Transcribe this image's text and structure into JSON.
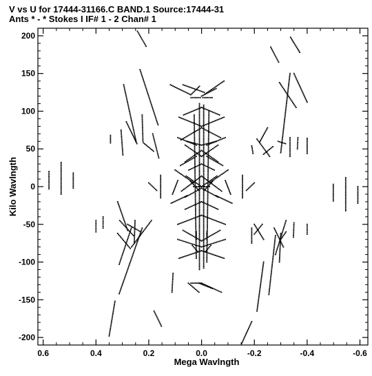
{
  "header": {
    "line1": "V vs U for 17444-31166.C BAND.1   Source:17444-31",
    "line2": "Ants * - *     Stokes I  IF# 1 - 2  Chan# 1"
  },
  "chart_data": {
    "type": "scatter",
    "title": "V vs U for 17444-31166.C BAND.1   Source:17444-31",
    "subtitle": "Ants * - *     Stokes I  IF# 1 - 2  Chan# 1",
    "xlabel": "Mega Wavlngth",
    "ylabel": "Kilo Wavlngth",
    "xlim": [
      0.62,
      -0.63
    ],
    "ylim": [
      -210,
      210
    ],
    "x_ticks": [
      0.6,
      0.4,
      0.2,
      0.0,
      -0.2,
      -0.4,
      -0.6
    ],
    "x_tick_labels": [
      "0.6",
      "0.4",
      "0.2",
      "0.0",
      "-0.2",
      "-0.4",
      "-0.6"
    ],
    "y_ticks": [
      200,
      150,
      100,
      50,
      0,
      -50,
      -100,
      -150,
      -200
    ],
    "y_tick_labels": [
      "200",
      "150",
      "100",
      "50",
      "0",
      "-50",
      "-100",
      "-150",
      "-200"
    ],
    "grid": false,
    "marker_color": "#000000",
    "tracks": [
      [
        0.578,
        0.578,
        20,
        -3
      ],
      [
        0.532,
        0.532,
        32,
        -10
      ],
      [
        0.486,
        0.486,
        18,
        -2
      ],
      [
        -0.499,
        -0.499,
        3,
        -19
      ],
      [
        -0.546,
        -0.546,
        12,
        -32
      ],
      [
        -0.592,
        -0.592,
        0,
        -22
      ],
      [
        0.243,
        0.21,
        206,
        186
      ],
      [
        0.233,
        0.165,
        155,
        82
      ],
      [
        0.295,
        0.248,
        135,
        60
      ],
      [
        0.225,
        0.222,
        95,
        60
      ],
      [
        0.345,
        0.345,
        68,
        58
      ],
      [
        0.305,
        0.298,
        75,
        42
      ],
      [
        0.285,
        0.245,
        86,
        57
      ],
      [
        0.185,
        0.162,
        70,
        38
      ],
      [
        0.22,
        0.182,
        58,
        47
      ],
      [
        -0.262,
        -0.292,
        185,
        165
      ],
      [
        -0.337,
        -0.372,
        198,
        178
      ],
      [
        -0.35,
        -0.4,
        150,
        112
      ],
      [
        -0.295,
        -0.358,
        138,
        105
      ],
      [
        -0.335,
        -0.3,
        150,
        45
      ],
      [
        -0.365,
        -0.363,
        65,
        50
      ],
      [
        -0.4,
        -0.4,
        64,
        44
      ],
      [
        -0.318,
        -0.29,
        57,
        60
      ],
      [
        -0.27,
        -0.235,
        53,
        43
      ],
      [
        -0.19,
        -0.195,
        54,
        44
      ],
      [
        -0.25,
        -0.22,
        78,
        59
      ],
      [
        -0.21,
        -0.258,
        63,
        40
      ],
      [
        -0.335,
        -0.335,
        65,
        40
      ],
      [
        0.18,
        0.152,
        -165,
        -185
      ],
      [
        0.328,
        0.35,
        -152,
        -198
      ],
      [
        0.225,
        0.312,
        -55,
        -142
      ],
      [
        0.266,
        0.312,
        -55,
        -103
      ],
      [
        0.318,
        0.28,
        -20,
        -58
      ],
      [
        0.373,
        0.373,
        -40,
        -55
      ],
      [
        0.4,
        0.4,
        -45,
        -60
      ],
      [
        0.318,
        0.27,
        -62,
        -82
      ],
      [
        0.265,
        0.19,
        -80,
        -45
      ],
      [
        0.28,
        0.23,
        -50,
        -60
      ],
      [
        0.252,
        0.255,
        -45,
        -75
      ],
      [
        0.31,
        0.258,
        -45,
        -65
      ],
      [
        -0.19,
        -0.152,
        -179,
        -208
      ],
      [
        -0.28,
        -0.255,
        -65,
        -143
      ],
      [
        -0.235,
        -0.21,
        -100,
        -165
      ],
      [
        -0.275,
        -0.31,
        -55,
        -80
      ],
      [
        -0.3,
        -0.32,
        -70,
        -60
      ],
      [
        -0.3,
        -0.295,
        -62,
        -100
      ],
      [
        -0.35,
        -0.348,
        -48,
        -67
      ],
      [
        -0.4,
        -0.4,
        -50,
        -63
      ],
      [
        -0.32,
        -0.28,
        -45,
        -90
      ],
      [
        -0.23,
        -0.2,
        -50,
        -63
      ],
      [
        -0.2,
        -0.235,
        -50,
        -70
      ],
      [
        -0.19,
        -0.19,
        -55,
        -75
      ],
      [
        0.008,
        0.04,
        133,
        122
      ],
      [
        0.042,
        0.118,
        122,
        135
      ],
      [
        0.07,
        -0.01,
        135,
        125
      ],
      [
        -0.01,
        -0.085,
        122,
        140
      ],
      [
        0.0,
        -0.055,
        120,
        130
      ],
      [
        0.05,
        0.01,
        -128,
        -140
      ],
      [
        0.04,
        0.0,
        -128,
        -128
      ],
      [
        0.0,
        -0.075,
        -128,
        -140
      ],
      [
        0.01,
        -0.04,
        -128,
        -135
      ],
      [
        0.112,
        0.108,
        -140,
        -115
      ],
      [
        0.008,
        0.008,
        110,
        -110
      ],
      [
        -0.008,
        -0.008,
        108,
        -108
      ],
      [
        0.028,
        0.02,
        95,
        -95
      ],
      [
        -0.028,
        -0.02,
        100,
        -100
      ],
      [
        0.068,
        0.0,
        95,
        105
      ],
      [
        0.0,
        -0.068,
        105,
        95
      ],
      [
        0.085,
        0.0,
        92,
        80
      ],
      [
        0.0,
        -0.085,
        80,
        92
      ],
      [
        0.078,
        0.0,
        62,
        78
      ],
      [
        0.0,
        -0.072,
        78,
        65
      ],
      [
        0.062,
        0.0,
        55,
        40
      ],
      [
        0.0,
        -0.062,
        40,
        55
      ],
      [
        0.062,
        0.0,
        33,
        48
      ],
      [
        0.0,
        -0.062,
        48,
        33
      ],
      [
        0.048,
        0.0,
        22,
        30
      ],
      [
        0.0,
        -0.048,
        30,
        22
      ],
      [
        0.058,
        0.0,
        14,
        0
      ],
      [
        0.0,
        -0.058,
        0,
        14
      ],
      [
        0.076,
        0.0,
        -6,
        14
      ],
      [
        0.0,
        -0.076,
        14,
        -6
      ],
      [
        0.062,
        0.0,
        -14,
        -2
      ],
      [
        0.0,
        -0.062,
        -2,
        -14
      ],
      [
        0.062,
        0.0,
        -30,
        -20
      ],
      [
        0.0,
        -0.062,
        -20,
        -30
      ],
      [
        0.09,
        0.0,
        -50,
        -38
      ],
      [
        0.0,
        -0.09,
        -38,
        -50
      ],
      [
        0.07,
        0.0,
        -58,
        -72
      ],
      [
        0.0,
        -0.07,
        -72,
        -58
      ],
      [
        0.09,
        0.0,
        -70,
        -80
      ],
      [
        0.0,
        -0.09,
        -80,
        -70
      ],
      [
        0.085,
        0.0,
        -95,
        -85
      ],
      [
        0.0,
        -0.085,
        -85,
        -95
      ],
      [
        0.02,
        0.02,
        -60,
        -70
      ],
      [
        -0.02,
        -0.02,
        -60,
        -70
      ],
      [
        0.035,
        0.015,
        -78,
        -86
      ],
      [
        -0.015,
        -0.035,
        -86,
        -78
      ],
      [
        0.11,
        0.09,
        -10,
        8
      ],
      [
        -0.09,
        -0.11,
        8,
        -10
      ],
      [
        0.1,
        0.03,
        22,
        5
      ],
      [
        -0.03,
        -0.1,
        5,
        22
      ],
      [
        0.115,
        0.055,
        -22,
        -12
      ],
      [
        -0.055,
        -0.115,
        -12,
        -22
      ],
      [
        0.2,
        0.17,
        5,
        -5
      ],
      [
        -0.17,
        -0.2,
        -5,
        5
      ],
      [
        0.155,
        0.155,
        15,
        -15
      ],
      [
        -0.155,
        -0.155,
        15,
        -15
      ],
      [
        0.042,
        0.01,
        7,
        -5
      ],
      [
        -0.01,
        -0.042,
        -5,
        7
      ],
      [
        0.03,
        -0.03,
        0,
        0
      ],
      [
        0.08,
        0.02,
        28,
        40
      ],
      [
        -0.02,
        -0.08,
        40,
        28
      ],
      [
        0.09,
        0.02,
        65,
        55
      ],
      [
        -0.02,
        -0.09,
        55,
        65
      ],
      [
        0.055,
        0.0,
        60,
        55
      ],
      [
        0.0,
        -0.055,
        55,
        60
      ],
      [
        0.04,
        0.005,
        118,
        118
      ],
      [
        -0.005,
        -0.04,
        118,
        118
      ]
    ]
  }
}
